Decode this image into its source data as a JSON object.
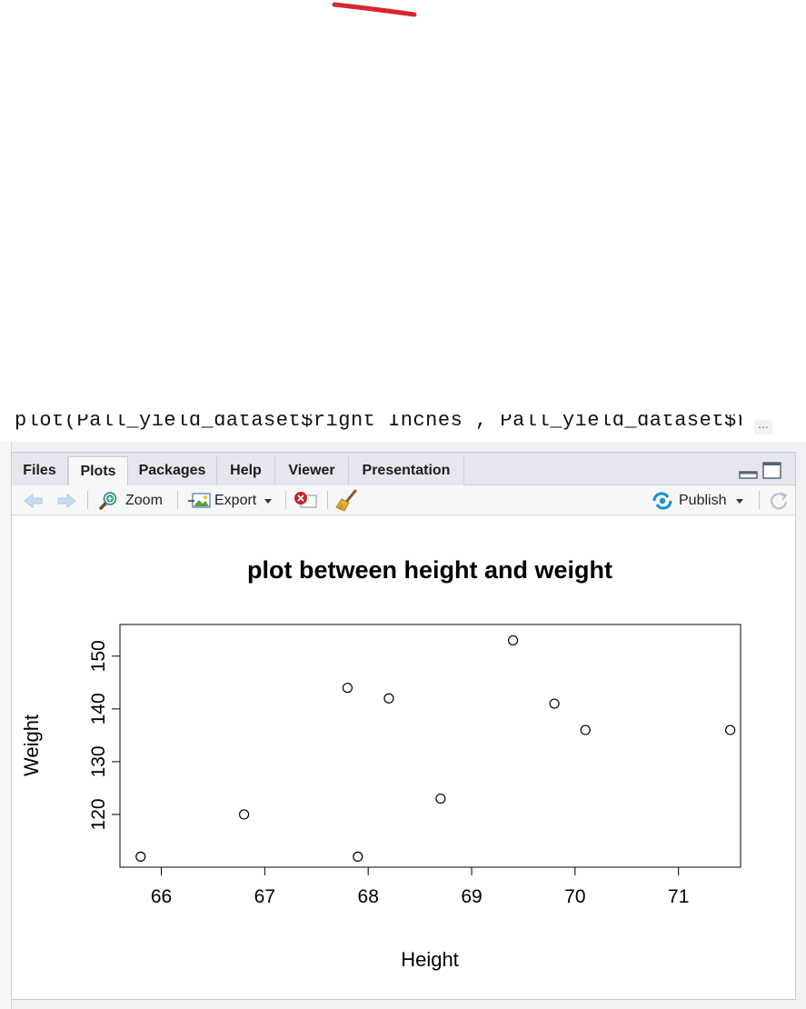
{
  "editor": {
    "code_line": "plot(Pall_yield_dataset$right Inches , Pall_yield_dataset$right Pibs , xlab",
    "overflow_indicator": "..."
  },
  "tabs": [
    {
      "label": "Files"
    },
    {
      "label": "Plots",
      "active": true
    },
    {
      "label": "Packages"
    },
    {
      "label": "Help"
    },
    {
      "label": "Viewer"
    },
    {
      "label": "Presentation"
    }
  ],
  "toolbar": {
    "zoom_label": "Zoom",
    "export_label": "Export",
    "publish_label": "Publish"
  },
  "icons": {
    "back": "back-arrow-icon",
    "forward": "forward-arrow-icon",
    "zoom": "magnifier-zoom-icon",
    "export": "export-image-icon",
    "remove": "remove-plot-icon",
    "clear": "broom-icon",
    "publish": "publish-icon",
    "refresh": "refresh-icon",
    "minimize": "minimize-pane-icon",
    "maximize": "maximize-pane-icon"
  },
  "colors": {
    "annotation_mark": "#d9262c",
    "tabbar": "#e4e8ee",
    "toolbar": "#f6f7f9",
    "publish_accent": "#1a8fd6"
  },
  "chart_data": {
    "type": "scatter",
    "title": "plot between height and weight",
    "xlabel": "Height",
    "ylabel": "Weight",
    "xlim": [
      65.6,
      71.6
    ],
    "ylim": [
      110,
      156
    ],
    "xticks": [
      66,
      67,
      68,
      69,
      70,
      71
    ],
    "yticks": [
      120,
      130,
      140,
      150
    ],
    "marker": "open-circle",
    "grid": false,
    "points": [
      {
        "x": 65.8,
        "y": 112
      },
      {
        "x": 66.8,
        "y": 120
      },
      {
        "x": 67.8,
        "y": 144
      },
      {
        "x": 67.9,
        "y": 112
      },
      {
        "x": 68.2,
        "y": 142
      },
      {
        "x": 68.7,
        "y": 123
      },
      {
        "x": 69.4,
        "y": 153
      },
      {
        "x": 69.8,
        "y": 141
      },
      {
        "x": 70.1,
        "y": 136
      },
      {
        "x": 71.5,
        "y": 136
      }
    ]
  }
}
